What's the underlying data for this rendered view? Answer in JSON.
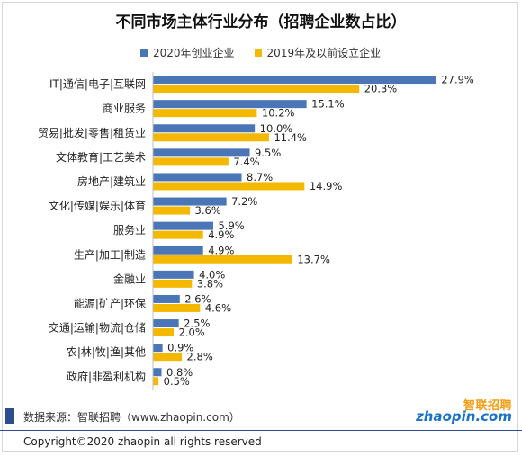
{
  "chart_data": {
    "type": "bar",
    "orientation": "horizontal",
    "title": "不同市场主体行业分布（招聘企业数占比）",
    "categories": [
      "IT|通信|电子|互联网",
      "商业服务",
      "贸易|批发|零售|租赁业",
      "文体教育|工艺美术",
      "房地产|建筑业",
      "文化|传媒|娱乐|体育",
      "服务业",
      "生产|加工|制造",
      "金融业",
      "能源|矿产|环保",
      "交通|运输|物流|仓储",
      "农|林|牧|渔|其他",
      "政府|非盈利机构"
    ],
    "series": [
      {
        "name": "2020年创业企业",
        "color": "#4a76b8",
        "values": [
          27.9,
          15.1,
          10.0,
          9.5,
          8.7,
          7.2,
          5.9,
          4.9,
          4.0,
          2.6,
          2.5,
          0.9,
          0.8
        ],
        "labels": [
          "27.9%",
          "15.1%",
          "10.0%",
          "9.5%",
          "8.7%",
          "7.2%",
          "5.9%",
          "4.9%",
          "4.0%",
          "2.6%",
          "2.5%",
          "0.9%",
          "0.8%"
        ]
      },
      {
        "name": "2019年及以前设立企业",
        "color": "#f5b800",
        "values": [
          20.3,
          10.2,
          11.4,
          7.4,
          14.9,
          3.6,
          4.9,
          13.7,
          3.8,
          4.6,
          2.0,
          2.8,
          0.5
        ],
        "labels": [
          "20.3%",
          "10.2%",
          "11.4%",
          "7.4%",
          "14.9%",
          "3.6%",
          "4.9%",
          "13.7%",
          "3.8%",
          "4.6%",
          "2.0%",
          "2.8%",
          "0.5%"
        ]
      }
    ],
    "xlim": [
      0,
      30
    ],
    "legend_position": "top",
    "grid": false
  },
  "footer": {
    "source": "数据来源：智联招聘（www.zhaopin.com）",
    "copyright": "Copyright©2020 zhaopin all rights reserved",
    "logo_cn": "智联招聘",
    "logo_en": "zhaopin.com"
  }
}
